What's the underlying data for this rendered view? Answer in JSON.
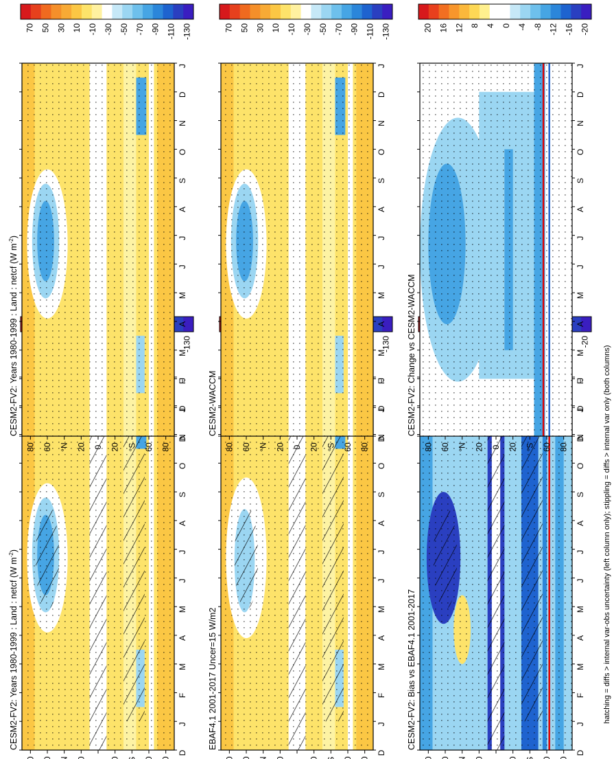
{
  "figure": {
    "footnote": "hatching = diffs > internal var-obs uncertainty (left column only); stippling = diffs > internal var only (both columns)"
  },
  "chart_data": [
    {
      "id": "panel_a",
      "type": "heatmap",
      "title": "CESM2-FV2: Years 1980-1999 : Land : netcf (W m",
      "title_sup": "-2",
      "title_close": ")",
      "x_ticks": [
        "D",
        "J",
        "F",
        "M",
        "A",
        "M",
        "J",
        "J",
        "A",
        "S",
        "O",
        "N",
        "D",
        "J"
      ],
      "y_ticks": [
        "80",
        "60",
        "°N",
        "20",
        "0",
        "20",
        "°S",
        "60",
        "80"
      ],
      "features": [
        "blue_blob_NH",
        "blue_band_S",
        "white_eq",
        "white_60S",
        "stipple",
        "hatch"
      ],
      "colorbar": "abs"
    },
    {
      "id": "panel_b",
      "type": "heatmap",
      "title": "CESM2-FV2: Years 1980-1999 : Land : netcf (W m",
      "title_sup": "-2",
      "title_close": ")",
      "x_ticks": [
        "D",
        "J",
        "F",
        "M",
        "A",
        "M",
        "J",
        "J",
        "A",
        "S",
        "O",
        "N",
        "D",
        "J"
      ],
      "y_ticks": [
        "80",
        "60",
        "°N",
        "20",
        "0",
        "20",
        "°S",
        "60",
        "80"
      ],
      "features": [
        "blue_blob_NH",
        "blue_band_S",
        "white_eq",
        "white_60S",
        "stipple"
      ],
      "colorbar": "abs"
    },
    {
      "id": "panel_c",
      "type": "heatmap",
      "title": "EBAF4.1 2001-2017 Uncer=15 W/m2",
      "x_ticks": [
        "D",
        "J",
        "F",
        "M",
        "A",
        "M",
        "J",
        "J",
        "A",
        "S",
        "O",
        "N",
        "D",
        "J"
      ],
      "y_ticks": [
        "80",
        "60",
        "°N",
        "20",
        "0",
        "20",
        "°S",
        "60",
        "80"
      ],
      "features": [
        "white_blob_NH",
        "blue_band_S",
        "white_eq",
        "white_60S",
        "stipple",
        "hatch"
      ],
      "colorbar": "abs"
    },
    {
      "id": "panel_d",
      "type": "heatmap",
      "title": "CESM2-WACCM",
      "x_ticks": [
        "D",
        "J",
        "F",
        "M",
        "A",
        "M",
        "J",
        "J",
        "A",
        "S",
        "O",
        "N",
        "D",
        "J"
      ],
      "y_ticks": [
        "80",
        "60",
        "°N",
        "20",
        "0",
        "20",
        "°S",
        "60",
        "80"
      ],
      "features": [
        "blue_blob_NH",
        "blue_band_S",
        "white_eq",
        "white_60S",
        "stipple"
      ],
      "colorbar": "abs"
    },
    {
      "id": "panel_e",
      "type": "heatmap",
      "title": "CESM2-FV2: Bias vs EBAF4.1 2001-2017",
      "x_ticks": [
        "D",
        "J",
        "F",
        "M",
        "A",
        "M",
        "J",
        "J",
        "A",
        "S",
        "O",
        "N",
        "D",
        "J"
      ],
      "y_ticks": [
        "80",
        "60",
        "°N",
        "20",
        "0",
        "20",
        "°S",
        "60",
        "80"
      ],
      "features": [
        "bias",
        "stipple",
        "hatch"
      ],
      "colorbar": "diff"
    },
    {
      "id": "panel_f",
      "type": "heatmap",
      "title": "CESM2-FV2: Change vs CESM2-WACCM",
      "x_ticks": [
        "D",
        "J",
        "F",
        "M",
        "A",
        "M",
        "J",
        "J",
        "A",
        "S",
        "O",
        "N",
        "D",
        "J"
      ],
      "y_ticks": [
        "80",
        "60",
        "°N",
        "20",
        "0",
        "20",
        "°S",
        "60",
        "80"
      ],
      "features": [
        "change",
        "stipple"
      ],
      "colorbar": "diff"
    }
  ],
  "colorbars": {
    "abs": {
      "labels": [
        "70",
        "50",
        "30",
        "10",
        "-10",
        "-30",
        "-50",
        "-70",
        "-90",
        "-110",
        "-130"
      ],
      "colors": [
        "#d7191c",
        "#e6401d",
        "#f06a1f",
        "#f58f2a",
        "#f8aa35",
        "#fbc744",
        "#fde36a",
        "#fff1a0",
        "#ffffff",
        "#c6e8f7",
        "#9bd6f2",
        "#6ec0ec",
        "#46a5e4",
        "#2b86da",
        "#1e63cf",
        "#2a3fc0",
        "#3a1ec0"
      ]
    },
    "diff": {
      "labels": [
        "20",
        "16",
        "12",
        "8",
        "4",
        "0",
        "-4",
        "-8",
        "-12",
        "-16",
        "-20"
      ],
      "colors": [
        "#d7191c",
        "#e8401d",
        "#f26f21",
        "#f8962c",
        "#fbb83b",
        "#fdd855",
        "#fff08e",
        "#ffffff",
        "#ffffff",
        "#c6e8f7",
        "#9bd6f2",
        "#6ec0ec",
        "#46a5e4",
        "#2b86da",
        "#1e63cf",
        "#2a3fc0",
        "#3a1ec0"
      ]
    }
  },
  "palette": {
    "yellow_light": "#fdf3a4",
    "yellow": "#fde36a",
    "orange_light": "#fbc744",
    "orange": "#f8aa35",
    "white": "#ffffff",
    "blue_pale": "#c6e8f7",
    "blue_light": "#9bd6f2",
    "blue": "#46a5e4",
    "blue_mid": "#2b86da",
    "blue_dark": "#1e63cf",
    "indigo": "#2a3fc0",
    "red_line": "#e00000"
  }
}
